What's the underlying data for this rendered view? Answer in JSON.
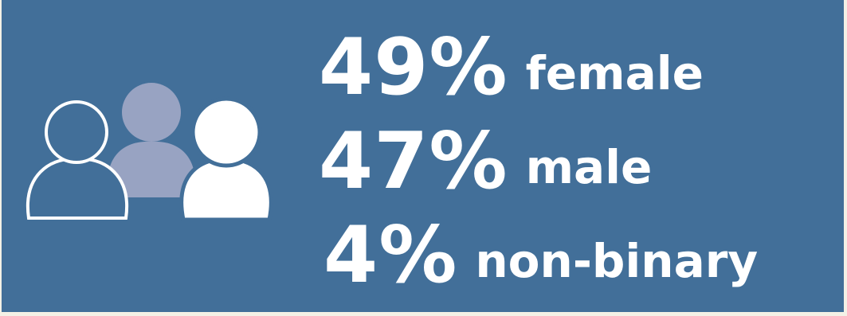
{
  "icon": "people-group-icon",
  "colors": {
    "background": "#426f99",
    "outline_person": "#ffffff",
    "middle_person": "#98a3c2",
    "front_person": "#ffffff",
    "text": "#ffffff"
  },
  "stats": [
    {
      "percent": "49%",
      "label": "female"
    },
    {
      "percent": "47%",
      "label": "male"
    },
    {
      "percent": "4%",
      "label": "non-binary"
    }
  ]
}
